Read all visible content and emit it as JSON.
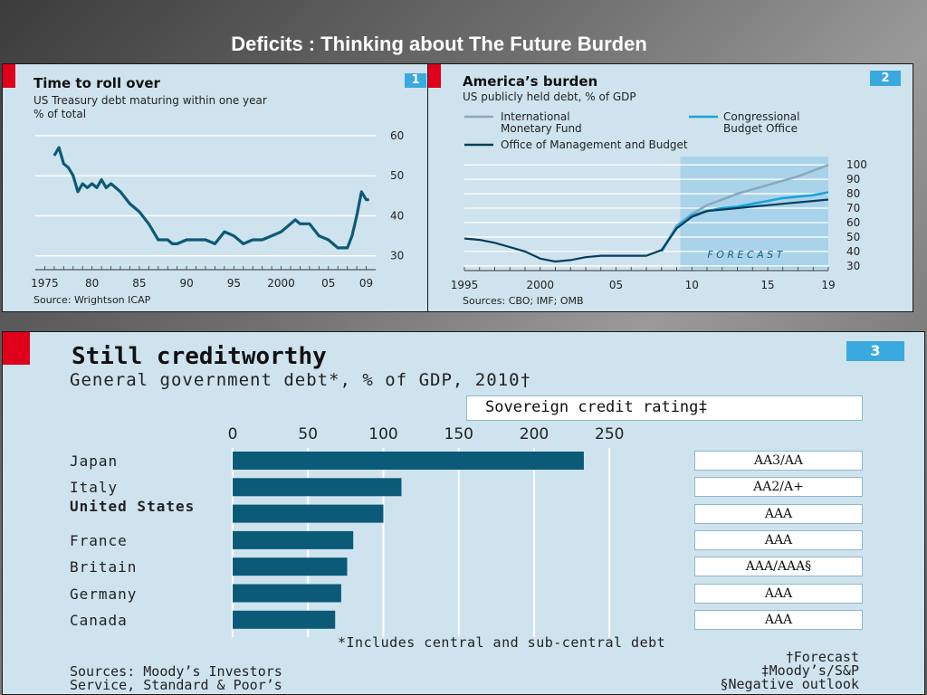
{
  "slide": {
    "title": "Deficits : Thinking about The Future Burden"
  },
  "chart1": {
    "badge": "1",
    "title": "Time to roll over",
    "subtitle": "US Treasury debt maturing within one year",
    "subtitle2": "% of total",
    "source": "Source: Wrightson ICAP"
  },
  "chart2": {
    "badge": "2",
    "title": "America’s burden",
    "subtitle": "US publicly held debt, % of GDP",
    "legend_imf_1": "International",
    "legend_imf_2": "Monetary Fund",
    "legend_cbo_1": "Congressional",
    "legend_cbo_2": "Budget Office",
    "legend_omb": "Office of Management and Budget",
    "forecast_label": "F O R E C A S T",
    "source": "Sources: CBO; IMF; OMB"
  },
  "chart3": {
    "badge": "3",
    "title": "Still creditworthy",
    "subtitle": "General government debt*, % of GDP, 2010†",
    "rating_header": "Sovereign credit rating‡",
    "footnote1": "*Includes central and sub-central debt",
    "footnote2": "†Forecast",
    "footnote3": "‡Moody’s/S&P",
    "footnote4": "§Negative outlook",
    "source1": "Sources: Moody’s Investors",
    "source2": "Service, Standard & Poor’s"
  },
  "chart_data": [
    {
      "type": "line",
      "title": "Time to roll over",
      "subtitle": "US Treasury debt maturing within one year",
      "ylabel": "% of total",
      "x_ticks": [
        "1975",
        "80",
        "85",
        "90",
        "95",
        "2000",
        "05",
        "09"
      ],
      "y_ticks": [
        30,
        40,
        50,
        60
      ],
      "xlim": [
        1974,
        2010
      ],
      "ylim": [
        27,
        62
      ],
      "series": [
        {
          "color": "#0d5a75",
          "x": [
            1976,
            1976.5,
            1977,
            1977.5,
            1978,
            1978.5,
            1979,
            1979.5,
            1980,
            1980.5,
            1981,
            1981.5,
            1982,
            1982.5,
            1983,
            1984,
            1985,
            1986,
            1987,
            1988,
            1988.5,
            1989,
            1990,
            1991,
            1992,
            1993,
            1994,
            1995,
            1996,
            1997,
            1998,
            1999,
            2000,
            2001,
            2001.5,
            2002,
            2003,
            2004,
            2005,
            2006,
            2007,
            2007.5,
            2008,
            2008.5,
            2009,
            2009.3
          ],
          "values": [
            55,
            57,
            53,
            52,
            50,
            46,
            48,
            47,
            48,
            47,
            49,
            47,
            48,
            47,
            46,
            43,
            41,
            38,
            34,
            34,
            33,
            33,
            34,
            34,
            34,
            33,
            36,
            35,
            33,
            34,
            34,
            35,
            36,
            38,
            39,
            38,
            38,
            35,
            34,
            32,
            32,
            35,
            40,
            46,
            44,
            44
          ]
        }
      ]
    },
    {
      "type": "line",
      "title": "America’s burden",
      "subtitle": "US publicly held debt, % of GDP",
      "x_ticks": [
        "1995",
        "2000",
        "05",
        "10",
        "15",
        "19"
      ],
      "y_ticks": [
        30,
        40,
        50,
        60,
        70,
        80,
        90,
        100
      ],
      "xlim": [
        1995,
        2019
      ],
      "ylim": [
        28,
        102
      ],
      "forecast_start": 2009,
      "series": [
        {
          "name": "International Monetary Fund",
          "color": "#8aa9bd",
          "x": [
            2008,
            2009,
            2010,
            2011,
            2012,
            2013,
            2014,
            2015,
            2016,
            2017,
            2018,
            2019
          ],
          "values": [
            40,
            58,
            66,
            72,
            76,
            80,
            83,
            86,
            89,
            92,
            96,
            100
          ]
        },
        {
          "name": "Congressional Budget Office",
          "color": "#1aa3d9",
          "x": [
            2008,
            2009,
            2010,
            2011,
            2012,
            2013,
            2014,
            2015,
            2016,
            2017,
            2018,
            2019
          ],
          "values": [
            40,
            57,
            65,
            68,
            70,
            71,
            73,
            75,
            77,
            78,
            79,
            81
          ]
        },
        {
          "name": "Office of Management and Budget",
          "color": "#073f5a",
          "x": [
            1995,
            1996,
            1997,
            1998,
            1999,
            2000,
            2001,
            2002,
            2003,
            2004,
            2005,
            2006,
            2007,
            2008,
            2009,
            2010,
            2011,
            2012,
            2013,
            2014,
            2015,
            2016,
            2017,
            2018,
            2019
          ],
          "values": [
            49,
            48,
            46,
            43,
            40,
            35,
            33,
            34,
            36,
            37,
            37,
            37,
            37,
            41,
            56,
            64,
            68,
            69,
            70,
            71,
            72,
            73,
            74,
            75,
            76
          ]
        }
      ]
    },
    {
      "type": "bar",
      "orientation": "horizontal",
      "title": "Still creditworthy",
      "subtitle": "General government debt*, % of GDP, 2010†",
      "x_ticks": [
        0,
        50,
        100,
        150,
        200,
        250
      ],
      "xlim": [
        0,
        250
      ],
      "categories": [
        "Japan",
        "Italy",
        "United States",
        "France",
        "Britain",
        "Germany",
        "Canada"
      ],
      "values": [
        233,
        112,
        100,
        80,
        76,
        72,
        68
      ],
      "ratings": [
        "AA3/AA",
        "AA2/A+",
        "AAA",
        "AAA",
        "AAA/AAA§",
        "AAA",
        "AAA"
      ],
      "bar_color": "#0b5a78"
    }
  ]
}
